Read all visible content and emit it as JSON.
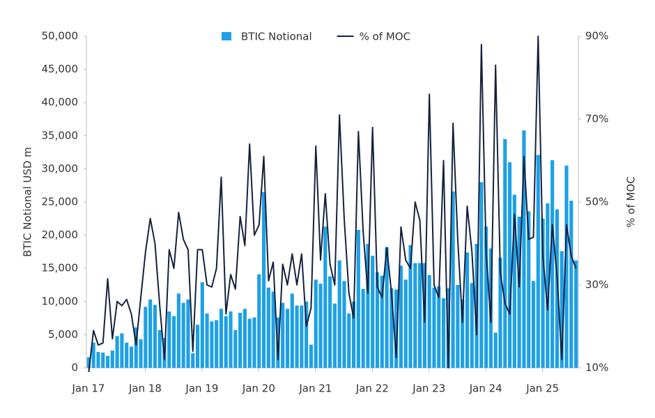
{
  "chart_data": {
    "type": "bar-line",
    "y_label": "BTIC Notional USD m",
    "y2_label": "% of MOC",
    "categories": [
      "Jan 17",
      null,
      null,
      null,
      null,
      null,
      null,
      null,
      null,
      null,
      null,
      null,
      "Jan 18",
      null,
      null,
      null,
      null,
      null,
      null,
      null,
      null,
      null,
      null,
      null,
      "Jan 19",
      null,
      null,
      null,
      null,
      null,
      null,
      null,
      null,
      null,
      null,
      null,
      "Jan 20",
      null,
      null,
      null,
      null,
      null,
      null,
      null,
      null,
      null,
      null,
      null,
      "Jan 21",
      null,
      null,
      null,
      null,
      null,
      null,
      null,
      null,
      null,
      null,
      null,
      "Jan 22",
      null,
      null,
      null,
      null,
      null,
      null,
      null,
      null,
      null,
      null,
      null,
      "Jan 23",
      null,
      null,
      null,
      null,
      null,
      null,
      null,
      null,
      null,
      null,
      null,
      "Jan 24",
      null,
      null,
      null,
      null,
      null,
      null,
      null,
      null,
      null,
      null,
      null,
      "Jan 25",
      null,
      null,
      null,
      null,
      null,
      null,
      null
    ],
    "series": [
      {
        "name": "BTIC Notional",
        "type": "bar",
        "color": "#1ea0e6",
        "values": [
          1600,
          3800,
          2400,
          2300,
          1800,
          2600,
          4800,
          5200,
          3800,
          3200,
          6100,
          4300,
          9200,
          10300,
          9500,
          5700,
          4500,
          8500,
          7800,
          11200,
          9800,
          10300,
          2200,
          6500,
          12900,
          8200,
          7000,
          7200,
          8900,
          7800,
          8500,
          5700,
          8300,
          8900,
          7400,
          7600,
          14100,
          26500,
          12100,
          11500,
          7600,
          9800,
          8900,
          11200,
          9400,
          9400,
          10000,
          3500,
          13300,
          12700,
          21300,
          13800,
          9700,
          16200,
          13100,
          8200,
          10000,
          20800,
          11900,
          18700,
          16900,
          14400,
          13900,
          18200,
          12000,
          11800,
          15400,
          13300,
          18500,
          15800,
          15800,
          15800,
          14000,
          12100,
          12300,
          10500,
          12000,
          26600,
          12500,
          10300,
          17400,
          12800,
          18700,
          28000,
          21300,
          18000,
          5300,
          16600,
          34500,
          31000,
          26100,
          22800,
          35800,
          23600,
          13100,
          32100,
          22500,
          24800,
          31300,
          23900,
          17600,
          30500,
          25200,
          16200
        ]
      },
      {
        "name": "% of MOC",
        "type": "line",
        "axis": "y2",
        "color": "#14213d",
        "values": [
          9,
          19,
          15.5,
          16,
          31.5,
          17,
          26,
          25,
          26.5,
          23,
          15.5,
          27,
          38,
          46,
          40,
          25,
          12,
          38.5,
          34,
          47.5,
          41,
          38.5,
          14,
          38.5,
          38.5,
          30,
          29.5,
          34,
          56,
          23,
          32.5,
          29,
          46.5,
          39.5,
          64,
          42,
          44.5,
          61,
          31,
          35.5,
          12,
          35,
          30,
          37.5,
          30,
          37.5,
          20,
          24.5,
          63.5,
          36,
          52,
          35,
          30,
          71,
          46,
          28,
          22,
          67,
          43,
          28,
          68,
          29.5,
          27,
          39,
          28,
          12.5,
          44,
          36,
          34,
          50,
          45.5,
          21,
          76,
          30,
          27,
          60,
          10,
          69,
          41,
          21,
          49,
          38,
          18,
          88,
          38,
          21,
          83,
          33,
          25.5,
          23,
          47,
          29.5,
          61,
          41,
          41.5,
          90,
          37,
          24,
          44.5,
          32,
          12,
          44.5,
          37,
          34
        ]
      }
    ],
    "ylim": [
      0,
      50000
    ],
    "yticks": [
      0,
      {
        "value": 5000,
        "label": "5,000"
      },
      {
        "value": 10000,
        "label": "10,000"
      },
      {
        "value": 15000,
        "label": "15,000"
      },
      {
        "value": 20000,
        "label": "20,000"
      },
      {
        "value": 25000,
        "label": "25,000"
      },
      {
        "value": 30000,
        "label": "30,000"
      },
      {
        "value": 35000,
        "label": "35,000"
      },
      {
        "value": 40000,
        "label": "40,000"
      },
      {
        "value": 45000,
        "label": "45,000"
      },
      {
        "value": 50000,
        "label": "50,000"
      }
    ],
    "y2lim": [
      10,
      90
    ],
    "y2ticks": [
      {
        "value": 10,
        "label": "10%"
      },
      {
        "value": 30,
        "label": "30%"
      },
      {
        "value": 50,
        "label": "50%"
      },
      {
        "value": 70,
        "label": "70%"
      },
      {
        "value": 90,
        "label": "90%"
      }
    ],
    "legend": "top"
  }
}
